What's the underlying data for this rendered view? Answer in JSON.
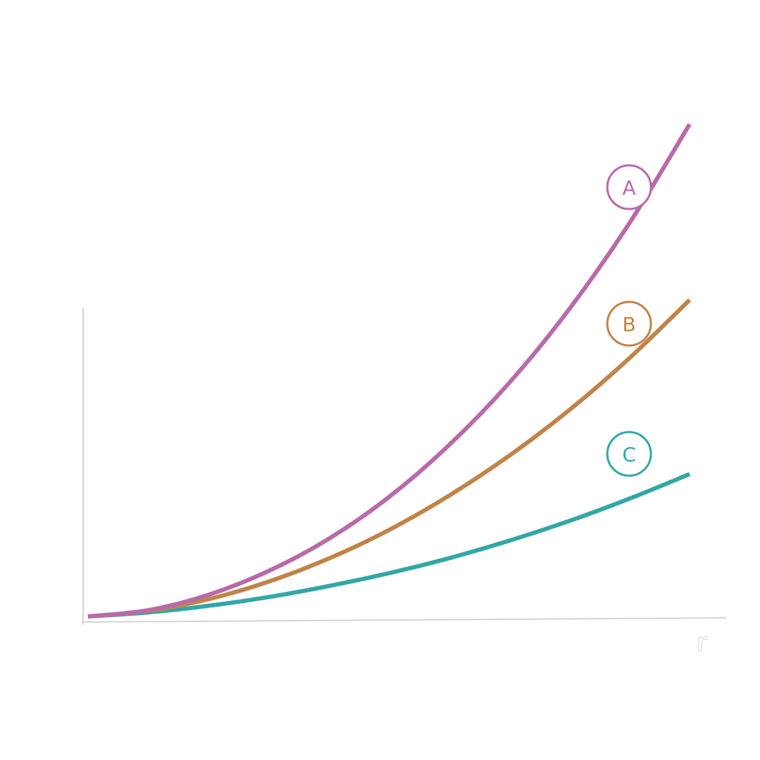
{
  "chart_data": {
    "type": "line",
    "title": "",
    "xlabel": "r",
    "ylabel": "",
    "xlim": [
      0,
      1
    ],
    "ylim": [
      0,
      1.5
    ],
    "grid": false,
    "legend": "inline-right",
    "x": [
      0,
      0.1,
      0.2,
      0.3,
      0.4,
      0.5,
      0.6,
      0.7,
      0.8,
      0.9,
      1.0
    ],
    "series": [
      {
        "name": "A",
        "color": "#b86aa9",
        "values": [
          0,
          0.017,
          0.059,
          0.124,
          0.212,
          0.326,
          0.468,
          0.638,
          0.84,
          1.075,
          1.345
        ]
      },
      {
        "name": "B",
        "color": "#c08448",
        "values": [
          0,
          0.015,
          0.047,
          0.095,
          0.158,
          0.236,
          0.33,
          0.439,
          0.564,
          0.706,
          0.865
        ]
      },
      {
        "name": "C",
        "color": "#33a7a6",
        "values": [
          0,
          0.011,
          0.029,
          0.053,
          0.083,
          0.118,
          0.159,
          0.207,
          0.261,
          0.322,
          0.389
        ]
      }
    ]
  }
}
